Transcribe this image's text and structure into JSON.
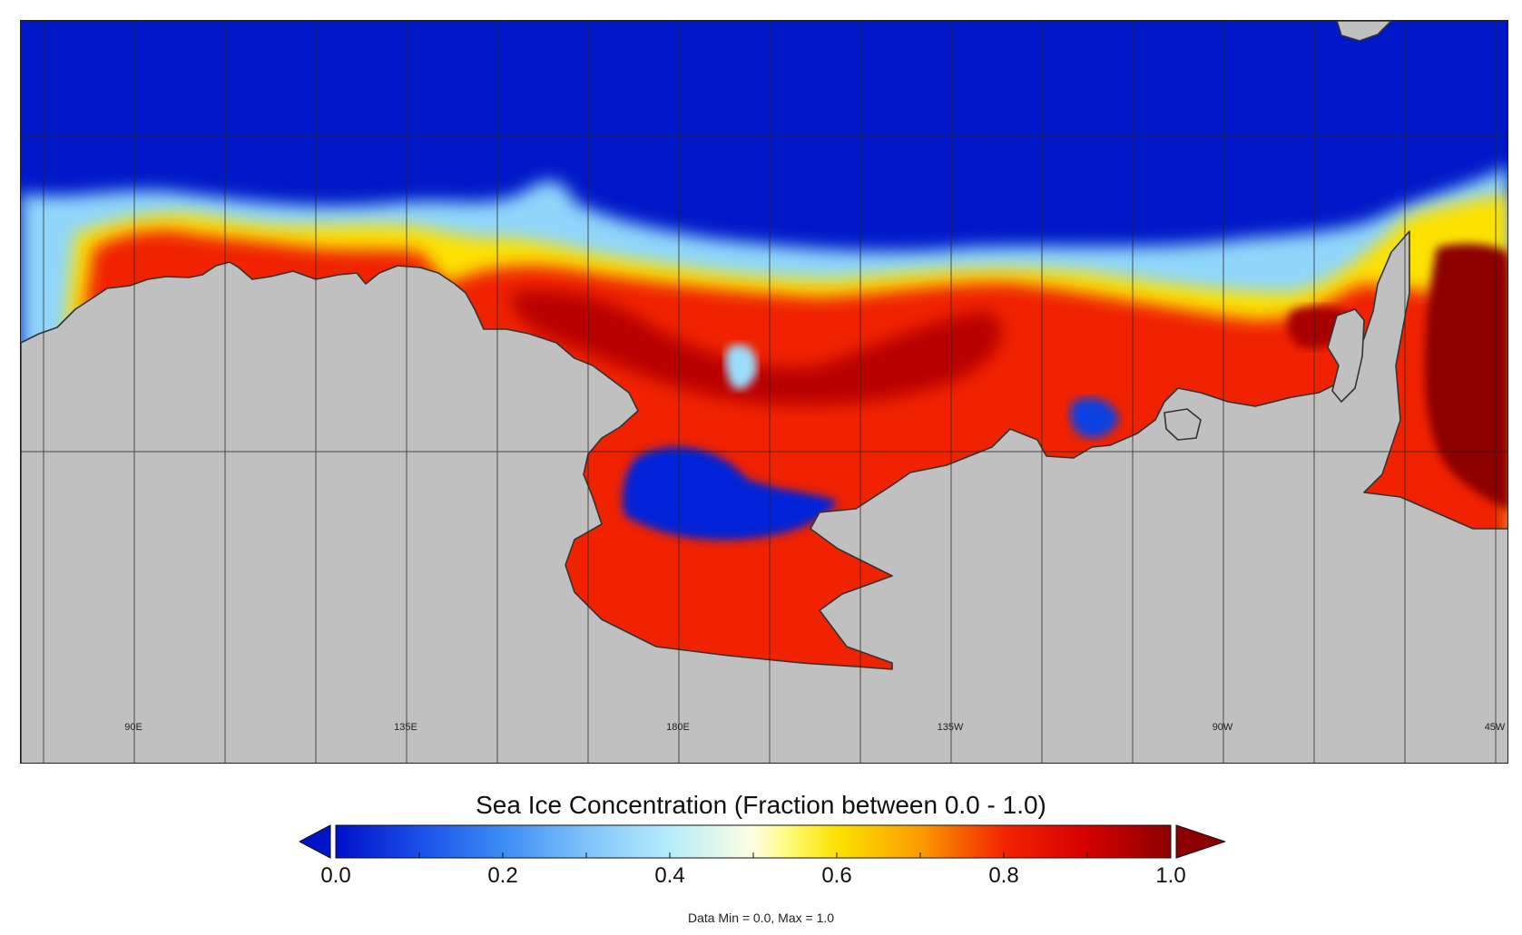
{
  "map": {
    "longitude_labels": [
      "90E",
      "135E",
      "180E",
      "135W",
      "90W",
      "45W"
    ]
  },
  "colorbar": {
    "title": "Sea Ice Concentration (Fraction between 0.0 - 1.0)",
    "tick_labels": [
      "0.0",
      "0.2",
      "0.4",
      "0.6",
      "0.8",
      "1.0"
    ],
    "range": [
      0.0,
      1.0
    ],
    "stops": [
      {
        "value": 0.0,
        "color": "#0010c8"
      },
      {
        "value": 0.1,
        "color": "#1a4fe8"
      },
      {
        "value": 0.2,
        "color": "#3c8cf5"
      },
      {
        "value": 0.3,
        "color": "#7ec4fa"
      },
      {
        "value": 0.4,
        "color": "#b7ecfc"
      },
      {
        "value": 0.5,
        "color": "#fffee0"
      },
      {
        "value": 0.55,
        "color": "#fdf86a"
      },
      {
        "value": 0.6,
        "color": "#fde200"
      },
      {
        "value": 0.7,
        "color": "#fb9c00"
      },
      {
        "value": 0.8,
        "color": "#f32400"
      },
      {
        "value": 0.9,
        "color": "#d40000"
      },
      {
        "value": 1.0,
        "color": "#8c0000"
      }
    ],
    "under_color": "#0014c8",
    "over_color": "#8b0000"
  },
  "footer": {
    "data_range": "Data Min = 0.0, Max = 1.0"
  },
  "colors": {
    "ocean_open": "#0018c8",
    "land": "#c0c0c0",
    "coastline": "#333333",
    "gridline": "#222222"
  }
}
